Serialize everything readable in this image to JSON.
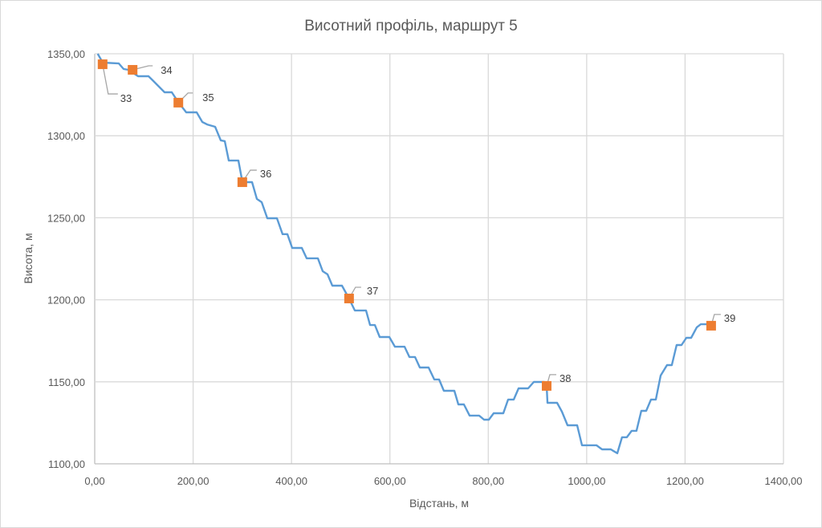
{
  "chart_data": {
    "type": "line",
    "title": "Висотний профіль, маршрут 5",
    "xlabel": "Відстань, м",
    "ylabel": "Висота, м",
    "xlim": [
      0,
      1400
    ],
    "ylim": [
      1100,
      1350
    ],
    "x_ticks": [
      0,
      200,
      400,
      600,
      800,
      1000,
      1200,
      1400
    ],
    "x_tick_labels": [
      "0,00",
      "200,00",
      "400,00",
      "600,00",
      "800,00",
      "1000,00",
      "1200,00",
      "1400,00"
    ],
    "y_ticks": [
      1100,
      1150,
      1200,
      1250,
      1300,
      1350
    ],
    "y_tick_labels": [
      "1100,00",
      "1150,00",
      "1200,00",
      "1250,00",
      "1300,00",
      "1350,00"
    ],
    "grid": true,
    "legend": "none",
    "series": [
      {
        "name": "profile",
        "color": "#5B9BD5",
        "points": [
          [
            6,
            1350
          ],
          [
            16.3,
            1344.6
          ],
          [
            49,
            1344.1
          ],
          [
            58.7,
            1340.7
          ],
          [
            68.5,
            1340.2
          ],
          [
            88.1,
            1336.3
          ],
          [
            109.3,
            1336.3
          ],
          [
            117.5,
            1333.9
          ],
          [
            142,
            1326.5
          ],
          [
            156.6,
            1326.5
          ],
          [
            169.7,
            1320.6
          ],
          [
            186,
            1314.3
          ],
          [
            207.2,
            1314.3
          ],
          [
            218.6,
            1308.4
          ],
          [
            228.4,
            1306.9
          ],
          [
            244.7,
            1305.5
          ],
          [
            256.2,
            1297.2
          ],
          [
            264.3,
            1296.7
          ],
          [
            272.5,
            1284.9
          ],
          [
            292,
            1284.9
          ],
          [
            300.2,
            1271.7
          ],
          [
            319.8,
            1271.7
          ],
          [
            329.6,
            1261.5
          ],
          [
            339.4,
            1259.5
          ],
          [
            350.8,
            1249.7
          ],
          [
            370.4,
            1249.7
          ],
          [
            381.8,
            1240
          ],
          [
            391.6,
            1240
          ],
          [
            401.4,
            1231.6
          ],
          [
            421,
            1231.6
          ],
          [
            430.7,
            1225.3
          ],
          [
            453.6,
            1225.3
          ],
          [
            463.4,
            1217.4
          ],
          [
            473.2,
            1215.5
          ],
          [
            483,
            1208.6
          ],
          [
            502.5,
            1208.6
          ],
          [
            517,
            1200.8
          ],
          [
            528.6,
            1193.5
          ],
          [
            551.5,
            1193.5
          ],
          [
            559.6,
            1184.6
          ],
          [
            569.4,
            1184.6
          ],
          [
            579.2,
            1177.3
          ],
          [
            598.8,
            1177.3
          ],
          [
            610.2,
            1171.4
          ],
          [
            629.8,
            1171.4
          ],
          [
            639.6,
            1165.1
          ],
          [
            651,
            1165.1
          ],
          [
            660.8,
            1158.7
          ],
          [
            678.7,
            1158.7
          ],
          [
            690.2,
            1151.4
          ],
          [
            700,
            1151.4
          ],
          [
            709.7,
            1144.5
          ],
          [
            731,
            1144.5
          ],
          [
            739.1,
            1136.2
          ],
          [
            750.5,
            1136.2
          ],
          [
            762,
            1129.4
          ],
          [
            781.5,
            1129.4
          ],
          [
            791.3,
            1126.9
          ],
          [
            801.1,
            1126.9
          ],
          [
            810.9,
            1130.8
          ],
          [
            830.5,
            1130.8
          ],
          [
            840.3,
            1139.2
          ],
          [
            851.7,
            1139.2
          ],
          [
            861.5,
            1146
          ],
          [
            881,
            1146
          ],
          [
            892.5,
            1149.9
          ],
          [
            913.7,
            1149.9
          ],
          [
            918.6,
            1147.5
          ],
          [
            920.2,
            1137.2
          ],
          [
            939.8,
            1137.2
          ],
          [
            949.6,
            1131.8
          ],
          [
            961,
            1123.5
          ],
          [
            980.6,
            1123.5
          ],
          [
            990.4,
            1111.3
          ],
          [
            1019.8,
            1111.3
          ],
          [
            1031.2,
            1108.8
          ],
          [
            1049.1,
            1108.8
          ],
          [
            1062.2,
            1106.4
          ],
          [
            1071.9,
            1116.2
          ],
          [
            1081.7,
            1116.2
          ],
          [
            1091.5,
            1120.1
          ],
          [
            1101.3,
            1120.1
          ],
          [
            1111.1,
            1132.3
          ],
          [
            1120.9,
            1132.3
          ],
          [
            1130.7,
            1139.2
          ],
          [
            1140.5,
            1139.2
          ],
          [
            1150.3,
            1153.8
          ],
          [
            1163.3,
            1160.2
          ],
          [
            1173.1,
            1160.2
          ],
          [
            1182.9,
            1172.4
          ],
          [
            1192.7,
            1172.4
          ],
          [
            1202.5,
            1176.8
          ],
          [
            1212.3,
            1176.8
          ],
          [
            1223.7,
            1183.2
          ],
          [
            1231.9,
            1185.1
          ],
          [
            1253,
            1185.1
          ]
        ]
      },
      {
        "name": "points",
        "color": "#ED7D31",
        "points": [
          {
            "x": 16,
            "y": 1343.6,
            "label": "33"
          },
          {
            "x": 77,
            "y": 1340.2,
            "label": "34"
          },
          {
            "x": 170,
            "y": 1320.2,
            "label": "35"
          },
          {
            "x": 300,
            "y": 1271.7,
            "label": "36"
          },
          {
            "x": 517,
            "y": 1200.8,
            "label": "37"
          },
          {
            "x": 918.6,
            "y": 1147.5,
            "label": "38"
          },
          {
            "x": 1253,
            "y": 1184.2,
            "label": "39"
          }
        ]
      }
    ]
  }
}
